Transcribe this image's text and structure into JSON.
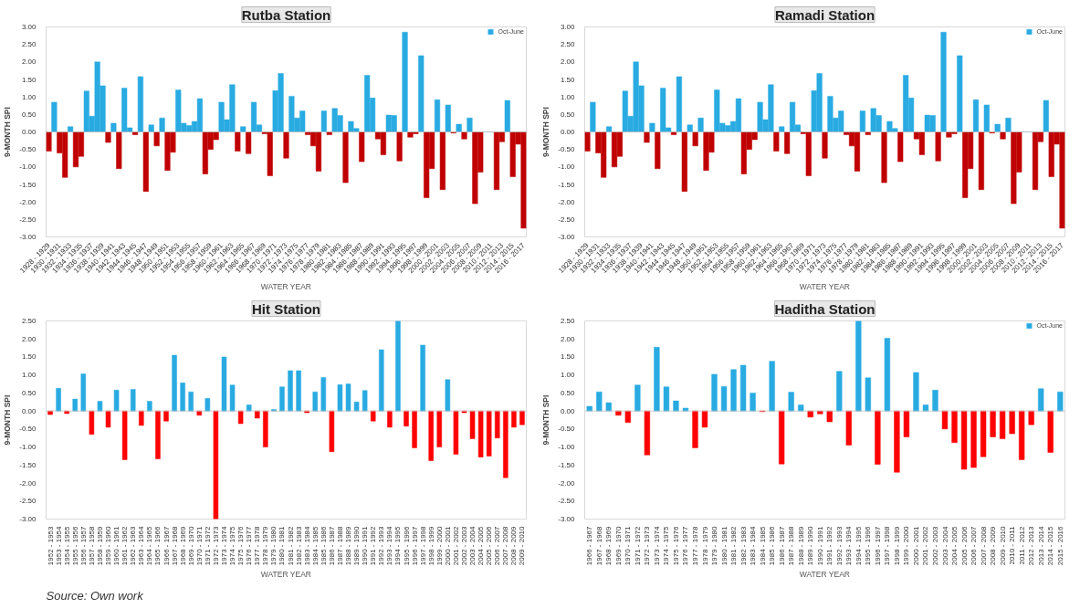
{
  "chart_data": [
    {
      "type": "bar",
      "title": "Rutba Station",
      "xlabel": "WATER YEAR",
      "ylabel": "9-MONTH SPI",
      "legend": "top right",
      "categories": [
        "1928 - 1929",
        null,
        "1930 - 1931",
        null,
        "1932 - 1933",
        null,
        "1934 - 1935",
        null,
        "1936 - 1937",
        null,
        "1938 - 1939",
        null,
        "1940 - 1941",
        null,
        "1942 - 1943",
        null,
        "1944 - 1945",
        null,
        "1946 - 1947",
        null,
        "1948 - 1949",
        null,
        "1950 - 1951",
        null,
        "1952 - 1953",
        null,
        "1954 - 1955",
        null,
        "1956 - 1957",
        null,
        "1958 - 1959",
        null,
        "1960 - 1961",
        null,
        "1962 - 1963",
        null,
        "1964 - 1965",
        null,
        "1966 - 1967",
        null,
        "1968 - 1969",
        null,
        "1970 - 1971",
        null,
        "1972 - 1973",
        null,
        "1974 - 1975",
        null,
        "1976 - 1977",
        null,
        "1978 - 1979",
        null,
        "1980 - 1981",
        null,
        "1982 - 1983",
        null,
        "1984 - 1985",
        null,
        "1986 - 1987",
        null,
        "1988 - 1989",
        null,
        "1990 - 1991",
        null,
        "1992 - 1993",
        null,
        "1994 - 1995",
        null,
        "1996 - 1997",
        null,
        "1998 - 1999",
        null,
        "2000 - 2001",
        null,
        "2002 - 2003",
        null,
        "2004 - 2005",
        null,
        "2006 - 2007",
        null,
        "2008 - 2009",
        null,
        "2010 - 2011",
        null,
        "2012 - 2013",
        null,
        "2014 - 2015",
        null,
        "2016 - 2017"
      ],
      "series": [
        {
          "name": "Oct-June",
          "color": "#29abe2",
          "values": [
            -0.55,
            0.85,
            -0.6,
            -1.3,
            0.15,
            -1.0,
            -0.7,
            1.17,
            0.45,
            2.0,
            1.32,
            -0.3,
            0.25,
            -1.05,
            1.25,
            0.12,
            -0.08,
            1.58,
            -1.7,
            0.2,
            -0.4,
            0.4,
            -1.1,
            -0.58,
            1.2,
            0.25,
            0.18,
            0.3,
            0.95,
            -1.2,
            -0.5,
            -0.22,
            0.85,
            0.35,
            1.35,
            -0.55,
            0.15,
            -0.62,
            0.85,
            0.2,
            -0.05,
            -1.25,
            1.18,
            1.67,
            -0.75,
            1.02,
            0.4,
            0.6,
            -0.08,
            -0.4,
            -1.12,
            0.6,
            -0.08,
            0.67,
            0.47,
            -1.45,
            0.3,
            0.1,
            -0.85,
            1.62,
            0.97,
            -0.2,
            -0.65,
            0.48,
            0.47,
            -0.83,
            2.85,
            -0.15,
            -0.05,
            2.18,
            -1.88,
            -1.05,
            0.92,
            -1.65,
            0.77,
            -0.03,
            0.22,
            -0.2,
            0.4,
            -2.05,
            -1.15,
            0.0,
            0.0,
            -1.65,
            -0.28,
            0.9,
            -1.28,
            -0.35,
            -2.75
          ],
          "colors": [
            "#c00000",
            "#29abe2",
            "#c00000",
            "#c00000",
            "#29abe2",
            "#c00000",
            "#c00000",
            "#29abe2",
            "#29abe2",
            "#29abe2",
            "#29abe2",
            "#c00000",
            "#29abe2",
            "#c00000",
            "#29abe2",
            "#29abe2",
            "#c00000",
            "#29abe2",
            "#c00000",
            "#29abe2",
            "#c00000",
            "#29abe2",
            "#c00000",
            "#c00000",
            "#29abe2",
            "#29abe2",
            "#29abe2",
            "#29abe2",
            "#29abe2",
            "#c00000",
            "#c00000",
            "#c00000",
            "#29abe2",
            "#29abe2",
            "#29abe2",
            "#c00000",
            "#29abe2",
            "#c00000",
            "#29abe2",
            "#29abe2",
            "#c00000",
            "#c00000",
            "#29abe2",
            "#29abe2",
            "#c00000",
            "#29abe2",
            "#29abe2",
            "#29abe2",
            "#c00000",
            "#c00000",
            "#c00000",
            "#29abe2",
            "#c00000",
            "#29abe2",
            "#29abe2",
            "#c00000",
            "#29abe2",
            "#29abe2",
            "#c00000",
            "#29abe2",
            "#29abe2",
            "#c00000",
            "#c00000",
            "#29abe2",
            "#29abe2",
            "#c00000",
            "#29abe2",
            "#c00000",
            "#c00000",
            "#29abe2",
            "#c00000",
            "#c00000",
            "#29abe2",
            "#c00000",
            "#29abe2",
            "#c00000",
            "#29abe2",
            "#c00000",
            "#29abe2",
            "#c00000",
            "#c00000",
            "#29abe2",
            "#29abe2",
            "#c00000",
            "#c00000",
            "#29abe2",
            "#c00000",
            "#c00000",
            "#c00000"
          ]
        }
      ],
      "ylim": [
        -3,
        3
      ],
      "yticks": [
        {
          "value": -3,
          "label": "-3.00"
        },
        {
          "value": -2.5,
          "label": "-2.50"
        },
        {
          "value": -2,
          "label": "-2.00"
        },
        {
          "value": -1.5,
          "label": "-1.50"
        },
        {
          "value": -1,
          "label": "-1.00"
        },
        {
          "value": -0.5,
          "label": "-0.50"
        },
        {
          "value": 0,
          "label": "0.00"
        },
        {
          "value": 0.5,
          "label": "0.50"
        },
        {
          "value": 1,
          "label": "1.00"
        },
        {
          "value": 1.5,
          "label": "1.50"
        },
        {
          "value": 2,
          "label": "2.00"
        },
        {
          "value": 2.5,
          "label": "2.50"
        },
        {
          "value": 3,
          "label": "3.00"
        }
      ]
    },
    {
      "type": "bar",
      "title": "Ramadi Station",
      "xlabel": "WATER YEAR",
      "ylabel": "9-MONTH SPI",
      "legend": "top right",
      "categories": [
        "1928 - 1929",
        null,
        "1930 - 1931",
        null,
        "1932 - 1933",
        null,
        "1934 - 1935",
        null,
        "1936 - 1937",
        null,
        "1938 - 1939",
        null,
        "1940 - 1941",
        null,
        "1942 - 1943",
        null,
        "1944 - 1945",
        null,
        "1946 - 1947",
        null,
        "1948 - 1949",
        null,
        "1950 - 1951",
        null,
        "1952 - 1953",
        null,
        "1954 - 1955",
        null,
        "1956 - 1957",
        null,
        "1958 - 1959",
        null,
        "1960 - 1961",
        null,
        "1962 - 1963",
        null,
        "1964 - 1965",
        null,
        "1966 - 1967",
        null,
        "1968 - 1969",
        null,
        "1970 - 1971",
        null,
        "1972 - 1973",
        null,
        "1974 - 1975",
        null,
        "1976 - 1977",
        null,
        "1978 - 1979",
        null,
        "1980 - 1981",
        null,
        "1982 - 1983",
        null,
        "1984 - 1985",
        null,
        "1986 - 1987",
        null,
        "1988 - 1989",
        null,
        "1990 - 1991",
        null,
        "1992 - 1993",
        null,
        "1994 - 1995",
        null,
        "1996 - 1997",
        null,
        "1998 - 1999",
        null,
        "2000 - 2001",
        null,
        "2002 - 2003",
        null,
        "2004 - 2005",
        null,
        "2006 - 2007",
        null,
        "2008 - 2009",
        null,
        "2010 - 2011",
        null,
        "2012 - 2013",
        null,
        "2014 - 2015",
        null,
        "2016 - 2017"
      ],
      "series": [
        {
          "name": "Oct-June",
          "color": "#29abe2",
          "values": [
            -0.55,
            0.85,
            -0.6,
            -1.3,
            0.15,
            -1.0,
            -0.7,
            1.17,
            0.45,
            2.0,
            1.32,
            -0.3,
            0.25,
            -1.05,
            1.25,
            0.12,
            -0.08,
            1.58,
            -1.7,
            0.2,
            -0.4,
            0.4,
            -1.1,
            -0.58,
            1.2,
            0.25,
            0.18,
            0.3,
            0.95,
            -1.2,
            -0.5,
            -0.22,
            0.85,
            0.35,
            1.35,
            -0.55,
            0.15,
            -0.62,
            0.85,
            0.2,
            -0.05,
            -1.25,
            1.18,
            1.67,
            -0.75,
            1.02,
            0.4,
            0.6,
            -0.08,
            -0.4,
            -1.12,
            0.6,
            -0.08,
            0.67,
            0.47,
            -1.45,
            0.3,
            0.1,
            -0.85,
            1.62,
            0.97,
            -0.2,
            -0.65,
            0.48,
            0.47,
            -0.83,
            2.85,
            -0.15,
            -0.05,
            2.18,
            -1.88,
            -1.05,
            0.92,
            -1.65,
            0.77,
            -0.03,
            0.22,
            -0.2,
            0.4,
            -2.05,
            -1.15,
            0.0,
            0.0,
            -1.65,
            -0.28,
            0.9,
            -1.28,
            -0.35,
            -2.75
          ],
          "colors": [
            "#c00000",
            "#29abe2",
            "#c00000",
            "#c00000",
            "#29abe2",
            "#c00000",
            "#c00000",
            "#29abe2",
            "#29abe2",
            "#29abe2",
            "#29abe2",
            "#c00000",
            "#29abe2",
            "#c00000",
            "#29abe2",
            "#29abe2",
            "#c00000",
            "#29abe2",
            "#c00000",
            "#29abe2",
            "#c00000",
            "#29abe2",
            "#c00000",
            "#c00000",
            "#29abe2",
            "#29abe2",
            "#29abe2",
            "#29abe2",
            "#29abe2",
            "#c00000",
            "#c00000",
            "#c00000",
            "#29abe2",
            "#29abe2",
            "#29abe2",
            "#c00000",
            "#29abe2",
            "#c00000",
            "#29abe2",
            "#29abe2",
            "#c00000",
            "#c00000",
            "#29abe2",
            "#29abe2",
            "#c00000",
            "#29abe2",
            "#29abe2",
            "#29abe2",
            "#c00000",
            "#c00000",
            "#c00000",
            "#29abe2",
            "#c00000",
            "#29abe2",
            "#29abe2",
            "#c00000",
            "#29abe2",
            "#29abe2",
            "#c00000",
            "#29abe2",
            "#29abe2",
            "#c00000",
            "#c00000",
            "#29abe2",
            "#29abe2",
            "#c00000",
            "#29abe2",
            "#c00000",
            "#c00000",
            "#29abe2",
            "#c00000",
            "#c00000",
            "#29abe2",
            "#c00000",
            "#29abe2",
            "#c00000",
            "#29abe2",
            "#c00000",
            "#29abe2",
            "#c00000",
            "#c00000",
            "#29abe2",
            "#29abe2",
            "#c00000",
            "#c00000",
            "#29abe2",
            "#c00000",
            "#c00000",
            "#c00000"
          ]
        }
      ],
      "ylim": [
        -3,
        3
      ],
      "yticks": [
        {
          "value": -3,
          "label": "-3.00"
        },
        {
          "value": -2.5,
          "label": "-2.50"
        },
        {
          "value": -2,
          "label": "-2.00"
        },
        {
          "value": -1.5,
          "label": "-1.50"
        },
        {
          "value": -1,
          "label": "-1.00"
        },
        {
          "value": -0.5,
          "label": "-0.50"
        },
        {
          "value": 0,
          "label": "0.00"
        },
        {
          "value": 0.5,
          "label": "0.50"
        },
        {
          "value": 1,
          "label": "1.00"
        },
        {
          "value": 1.5,
          "label": "1.50"
        },
        {
          "value": 2,
          "label": "2.00"
        },
        {
          "value": 2.5,
          "label": "2.50"
        },
        {
          "value": 3,
          "label": "3.00"
        }
      ]
    },
    {
      "type": "bar",
      "title": "Hit Station",
      "xlabel": "WATER YEAR",
      "ylabel": "9-MONTH SPI",
      "annotations": [
        "Source: Own work"
      ],
      "categories": [
        "1952 - 1953",
        "1953 - 1954",
        "1954 - 1955",
        "1955 - 1956",
        "1956 - 1957",
        "1957 - 1958",
        "1958 - 1959",
        "1959 - 1960",
        "1960 - 1961",
        "1961 - 1962",
        "1962 - 1963",
        "1963 - 1964",
        "1964 - 1965",
        "1965 - 1966",
        "1966 - 1967",
        "1967 - 1968",
        "1968 - 1969",
        "1969 - 1970",
        "1970 - 1971",
        "1971 - 1972",
        "1972 - 1973",
        "1973 - 1974",
        "1974 - 1975",
        "1975 - 1976",
        "1976 - 1977",
        "1977 - 1978",
        "1978 - 1979",
        "1979 - 1980",
        "1980 - 1981",
        "1981 - 1982",
        "1982 - 1983",
        "1983 - 1984",
        "1984 - 1985",
        "1985 - 1986",
        "1986 - 1987",
        "1987 - 1988",
        "1988 - 1989",
        "1989 - 1990",
        "1990 - 1991",
        "1991 - 1992",
        "1992 - 1993",
        "1993 - 1994",
        "1994 - 1995",
        "1995 - 1996",
        "1996 - 1997",
        "1997 - 1998",
        "1998 - 1999",
        "1999 - 2000",
        "2000 - 2001",
        "2001 - 2002",
        "2002 - 2003",
        "2003 - 2004",
        "2004 - 2005",
        "2005 - 2006",
        "2006 - 2007",
        "2007 - 2008",
        "2008 - 2009",
        "2009 - 2010"
      ],
      "series": [
        {
          "color": "#29abe2",
          "values": [
            -0.1,
            0.63,
            -0.07,
            0.33,
            1.03,
            -0.65,
            0.27,
            -0.45,
            0.58,
            -1.35,
            0.6,
            -0.4,
            0.27,
            -1.33,
            -0.28,
            1.55,
            0.78,
            0.53,
            -0.12,
            0.35,
            -3.0,
            1.5,
            0.72,
            -0.35,
            0.17,
            -0.2,
            -1.0,
            0.04,
            0.67,
            1.12,
            1.12,
            -0.05,
            0.53,
            0.93,
            -1.13,
            0.73,
            0.75,
            0.25,
            0.57,
            -0.28,
            1.7,
            -0.45,
            2.5,
            -0.42,
            -1.02,
            1.83,
            -1.38,
            -1.0,
            0.87,
            -1.2,
            -0.05,
            -0.77,
            -1.28,
            -1.25,
            -0.75,
            -1.85,
            -0.45,
            -0.38
          ],
          "colors": [
            "#ff0000",
            "#29abe2",
            "#ff0000",
            "#29abe2",
            "#29abe2",
            "#ff0000",
            "#29abe2",
            "#ff0000",
            "#29abe2",
            "#ff0000",
            "#29abe2",
            "#ff0000",
            "#29abe2",
            "#ff0000",
            "#ff0000",
            "#29abe2",
            "#29abe2",
            "#29abe2",
            "#ff0000",
            "#29abe2",
            "#ff0000",
            "#29abe2",
            "#29abe2",
            "#ff0000",
            "#29abe2",
            "#ff0000",
            "#ff0000",
            "#29abe2",
            "#29abe2",
            "#29abe2",
            "#29abe2",
            "#ff0000",
            "#29abe2",
            "#29abe2",
            "#ff0000",
            "#29abe2",
            "#29abe2",
            "#29abe2",
            "#29abe2",
            "#ff0000",
            "#29abe2",
            "#ff0000",
            "#29abe2",
            "#ff0000",
            "#ff0000",
            "#29abe2",
            "#ff0000",
            "#ff0000",
            "#29abe2",
            "#ff0000",
            "#ff0000",
            "#ff0000",
            "#ff0000",
            "#ff0000",
            "#ff0000",
            "#ff0000",
            "#ff0000",
            "#ff0000"
          ]
        }
      ],
      "ylim": [
        -3,
        2.5
      ],
      "yticks": [
        {
          "value": -3,
          "label": "-3.00"
        },
        {
          "value": -2.5,
          "label": "-2.50"
        },
        {
          "value": -2,
          "label": "-2.00"
        },
        {
          "value": -1.5,
          "label": "-1.50"
        },
        {
          "value": -1,
          "label": "-1.00"
        },
        {
          "value": -0.5,
          "label": "-0.50"
        },
        {
          "value": 0,
          "label": "0.00"
        },
        {
          "value": 0.5,
          "label": "0.50"
        },
        {
          "value": 1,
          "label": "1.00"
        },
        {
          "value": 1.5,
          "label": "1.50"
        },
        {
          "value": 2,
          "label": "2.00"
        },
        {
          "value": 2.5,
          "label": "2.50"
        }
      ]
    },
    {
      "type": "bar",
      "title": "Haditha Station",
      "xlabel": "WATER YEAR",
      "ylabel": "9-MONTH SPI",
      "legend": "top right",
      "categories": [
        "1966 - 1967",
        "1967 - 1968",
        "1968 - 1969",
        "1969 - 1970",
        "1970 - 1971",
        "1971 - 1972",
        "1972 - 1973",
        "1973 - 1974",
        "1974 - 1975",
        "1975 - 1976",
        "1976 - 1977",
        "1977 - 1978",
        "1978 - 1979",
        "1979 - 1980",
        "1980 - 1981",
        "1981 - 1982",
        "1982 - 1983",
        "1983 - 1984",
        "1984 - 1985",
        "1985 - 1986",
        "1986 - 1987",
        "1987 - 1988",
        "1988 - 1989",
        "1989 - 1990",
        "1990 - 1991",
        "1991 - 1992",
        "1992 - 1993",
        "1993 - 1994",
        "1994 - 1995",
        "1995 - 1996",
        "1996 - 1997",
        "1997 - 1998",
        "1998 - 1999",
        "1999 - 2000",
        "2000 - 2001",
        "2001 - 2002",
        "2002 - 2003",
        "2003 - 2004",
        "2004 - 2005",
        "2005 - 2006",
        "2006 - 2007",
        "2007 - 2008",
        "2008 - 2009",
        "2009 - 2010",
        "2010 - 2011",
        "2011 - 2012",
        "2012 - 2013",
        "2013 - 2014",
        "2014 - 2015",
        "2015 - 2016"
      ],
      "series": [
        {
          "name": "Oct-June",
          "color": "#29abe2",
          "values": [
            0.13,
            0.53,
            0.23,
            -0.12,
            -0.32,
            0.72,
            -1.22,
            1.77,
            0.67,
            0.28,
            0.08,
            -1.02,
            -0.45,
            1.02,
            0.68,
            1.15,
            1.27,
            0.5,
            -0.02,
            1.38,
            -1.47,
            0.52,
            0.17,
            -0.17,
            -0.08,
            -0.3,
            1.1,
            -0.95,
            2.5,
            0.92,
            -1.48,
            2.02,
            -1.7,
            -0.72,
            1.07,
            0.17,
            0.58,
            -0.5,
            -0.88,
            -1.62,
            -1.57,
            -1.27,
            -0.72,
            -0.77,
            -0.63,
            -1.35,
            -0.38,
            0.62,
            -1.15,
            0.53
          ],
          "colors": [
            "#29abe2",
            "#29abe2",
            "#29abe2",
            "#ff0000",
            "#ff0000",
            "#29abe2",
            "#ff0000",
            "#29abe2",
            "#29abe2",
            "#29abe2",
            "#29abe2",
            "#ff0000",
            "#ff0000",
            "#29abe2",
            "#29abe2",
            "#29abe2",
            "#29abe2",
            "#29abe2",
            "#ff0000",
            "#29abe2",
            "#ff0000",
            "#29abe2",
            "#29abe2",
            "#ff0000",
            "#ff0000",
            "#ff0000",
            "#29abe2",
            "#ff0000",
            "#29abe2",
            "#29abe2",
            "#ff0000",
            "#29abe2",
            "#ff0000",
            "#ff0000",
            "#29abe2",
            "#29abe2",
            "#29abe2",
            "#ff0000",
            "#ff0000",
            "#ff0000",
            "#ff0000",
            "#ff0000",
            "#ff0000",
            "#ff0000",
            "#ff0000",
            "#ff0000",
            "#ff0000",
            "#29abe2",
            "#ff0000",
            "#29abe2"
          ]
        }
      ],
      "ylim": [
        -3,
        2.5
      ],
      "yticks": [
        {
          "value": -3,
          "label": "-3.00"
        },
        {
          "value": -2.5,
          "label": "-2.50"
        },
        {
          "value": -2,
          "label": "-2.00"
        },
        {
          "value": -1.5,
          "label": "-1.50"
        },
        {
          "value": -1,
          "label": "-1.00"
        },
        {
          "value": -0.5,
          "label": "-0.50"
        },
        {
          "value": 0,
          "label": "0.00"
        },
        {
          "value": 0.5,
          "label": "0.50"
        },
        {
          "value": 1,
          "label": "1.00"
        },
        {
          "value": 1.5,
          "label": "1.50"
        },
        {
          "value": 2,
          "label": "2.00"
        },
        {
          "value": 2.5,
          "label": "2.50"
        }
      ]
    }
  ]
}
